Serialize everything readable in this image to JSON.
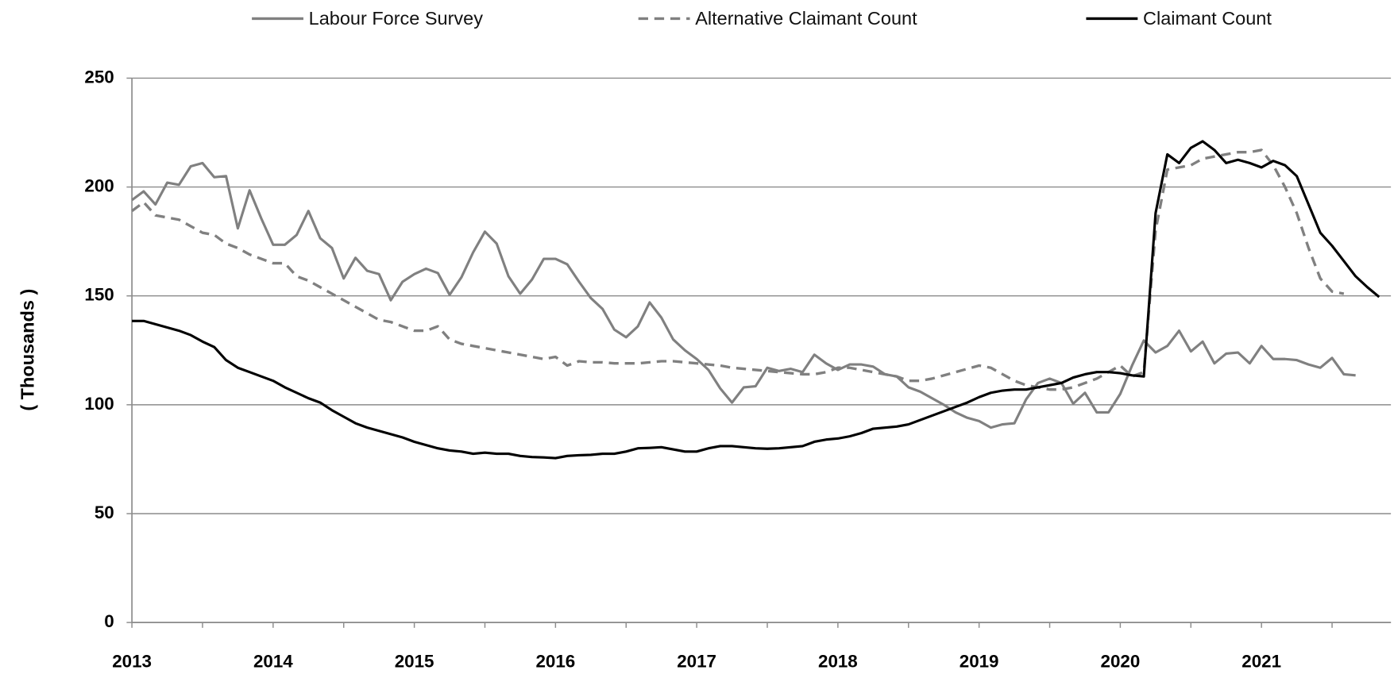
{
  "chart_data": {
    "type": "line",
    "y_label": "( Thousands )",
    "categories": [
      "2013",
      null,
      null,
      null,
      null,
      null,
      null,
      null,
      null,
      null,
      null,
      null,
      "2014",
      null,
      null,
      null,
      null,
      null,
      null,
      null,
      null,
      null,
      null,
      null,
      "2015",
      null,
      null,
      null,
      null,
      null,
      null,
      null,
      null,
      null,
      null,
      null,
      "2016",
      null,
      null,
      null,
      null,
      null,
      null,
      null,
      null,
      null,
      null,
      null,
      "2017",
      null,
      null,
      null,
      null,
      null,
      null,
      null,
      null,
      null,
      null,
      null,
      "2018",
      null,
      null,
      null,
      null,
      null,
      null,
      null,
      null,
      null,
      null,
      null,
      "2019",
      null,
      null,
      null,
      null,
      null,
      null,
      null,
      null,
      null,
      null,
      null,
      "2020",
      null,
      null,
      null,
      null,
      null,
      null,
      null,
      null,
      null,
      null,
      null,
      "2021",
      null,
      null,
      null,
      null,
      null,
      null,
      null,
      null,
      null,
      null
    ],
    "series": [
      {
        "name": "Labour Force Survey",
        "color": "#808080",
        "dashed": false,
        "values": [
          194,
          198,
          192,
          202,
          201,
          209.5,
          211,
          204.5,
          205,
          181,
          198.5,
          185.5,
          173.5,
          173.5,
          178,
          189,
          176.5,
          172,
          158,
          167.5,
          161.5,
          160,
          148,
          156.5,
          160,
          162.5,
          160.5,
          150.5,
          158.5,
          170,
          179.5,
          174,
          159,
          151,
          157.5,
          167,
          167,
          164.5,
          156.5,
          149,
          144,
          134.5,
          131,
          136,
          147,
          140,
          130,
          125,
          121,
          116,
          107.5,
          101,
          108,
          108.5,
          117,
          115.5,
          116.5,
          115,
          123,
          119,
          116,
          118.5,
          118.5,
          117.5,
          114,
          113,
          108,
          106,
          103,
          100,
          96.5,
          94,
          92.5,
          89.5,
          91,
          91.5,
          102.5,
          110,
          112,
          110,
          100.5,
          105.5,
          96.5,
          96.5,
          105,
          118,
          129.5,
          124,
          127,
          134,
          124.5,
          129,
          119,
          123.5,
          124,
          119,
          127,
          121,
          121,
          120.5,
          118.5,
          117,
          121.5,
          114,
          113.5,
          null,
          null
        ]
      },
      {
        "name": "Alternative Claimant Count",
        "color": "#808080",
        "dashed": true,
        "values": [
          189,
          193,
          187,
          186,
          185,
          182,
          179,
          178,
          174,
          172,
          169,
          167,
          165,
          165,
          159,
          157,
          154,
          151,
          148,
          145,
          142,
          139,
          138,
          136,
          134,
          134,
          136,
          130,
          128,
          127,
          126,
          125,
          124,
          123,
          122,
          121,
          122,
          118,
          120,
          119.5,
          119.5,
          119,
          119,
          119,
          119.5,
          120,
          120,
          119.5,
          119,
          118.5,
          118,
          117,
          116.5,
          116,
          115.5,
          115,
          114.5,
          114,
          114,
          115,
          117,
          117,
          116,
          115,
          114,
          113,
          111,
          111,
          112,
          113.5,
          115,
          116.5,
          118,
          117,
          114,
          111,
          109,
          108,
          107,
          107,
          108,
          110,
          112,
          115,
          118,
          113,
          115,
          180,
          208,
          209,
          210,
          213,
          214,
          215,
          216,
          216,
          217,
          210,
          200,
          188,
          172,
          158,
          152,
          151,
          null,
          null,
          null
        ]
      },
      {
        "name": "Claimant Count",
        "color": "#000000",
        "dashed": false,
        "values": [
          138.5,
          138.5,
          137,
          135.5,
          134,
          132,
          129,
          126.5,
          120.5,
          117,
          115,
          113,
          111,
          108,
          105.5,
          103,
          101,
          97.5,
          94.5,
          91.5,
          89.5,
          88,
          86.5,
          85,
          83,
          81.5,
          80,
          79,
          78.5,
          77.5,
          78,
          77.5,
          77.5,
          76.5,
          76,
          75.8,
          75.5,
          76.5,
          76.8,
          77,
          77.5,
          77.5,
          78.5,
          80,
          80.2,
          80.5,
          79.5,
          78.5,
          78.5,
          80,
          81,
          81,
          80.5,
          80,
          79.8,
          80,
          80.5,
          81,
          83,
          84,
          84.5,
          85.5,
          87,
          89,
          89.5,
          90,
          91,
          93,
          95,
          97,
          99,
          101,
          103.5,
          105.5,
          106.5,
          107,
          107,
          108,
          109,
          110,
          112.5,
          114,
          115,
          115,
          114.5,
          113.5,
          113,
          188,
          215,
          211,
          218,
          221,
          217,
          211,
          212.5,
          211,
          209,
          212,
          210,
          205,
          192,
          179,
          173,
          166,
          159,
          154,
          149.5
        ]
      }
    ],
    "ylim": [
      0,
      250
    ],
    "yticks": [
      0,
      50,
      100,
      150,
      200,
      250
    ],
    "grid": true
  }
}
